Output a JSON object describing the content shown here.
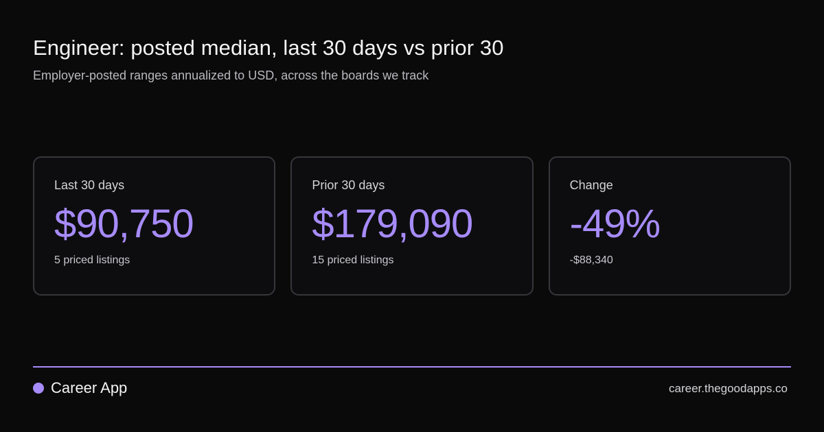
{
  "header": {
    "title": "Engineer: posted median, last 30 days vs prior 30",
    "subtitle": "Employer-posted ranges annualized to USD, across the boards we track"
  },
  "cards": [
    {
      "label": "Last 30 days",
      "value": "$90,750",
      "note": "5 priced listings"
    },
    {
      "label": "Prior 30 days",
      "value": "$179,090",
      "note": "15 priced listings"
    },
    {
      "label": "Change",
      "value": "-49%",
      "note": "-$88,340"
    }
  ],
  "footer": {
    "brand_name": "Career App",
    "site": "career.thegoodapps.co"
  },
  "colors": {
    "accent": "#a78bfa",
    "background": "#0a0a0a",
    "card_border": "#36363c",
    "divider": "#a78bfa"
  }
}
